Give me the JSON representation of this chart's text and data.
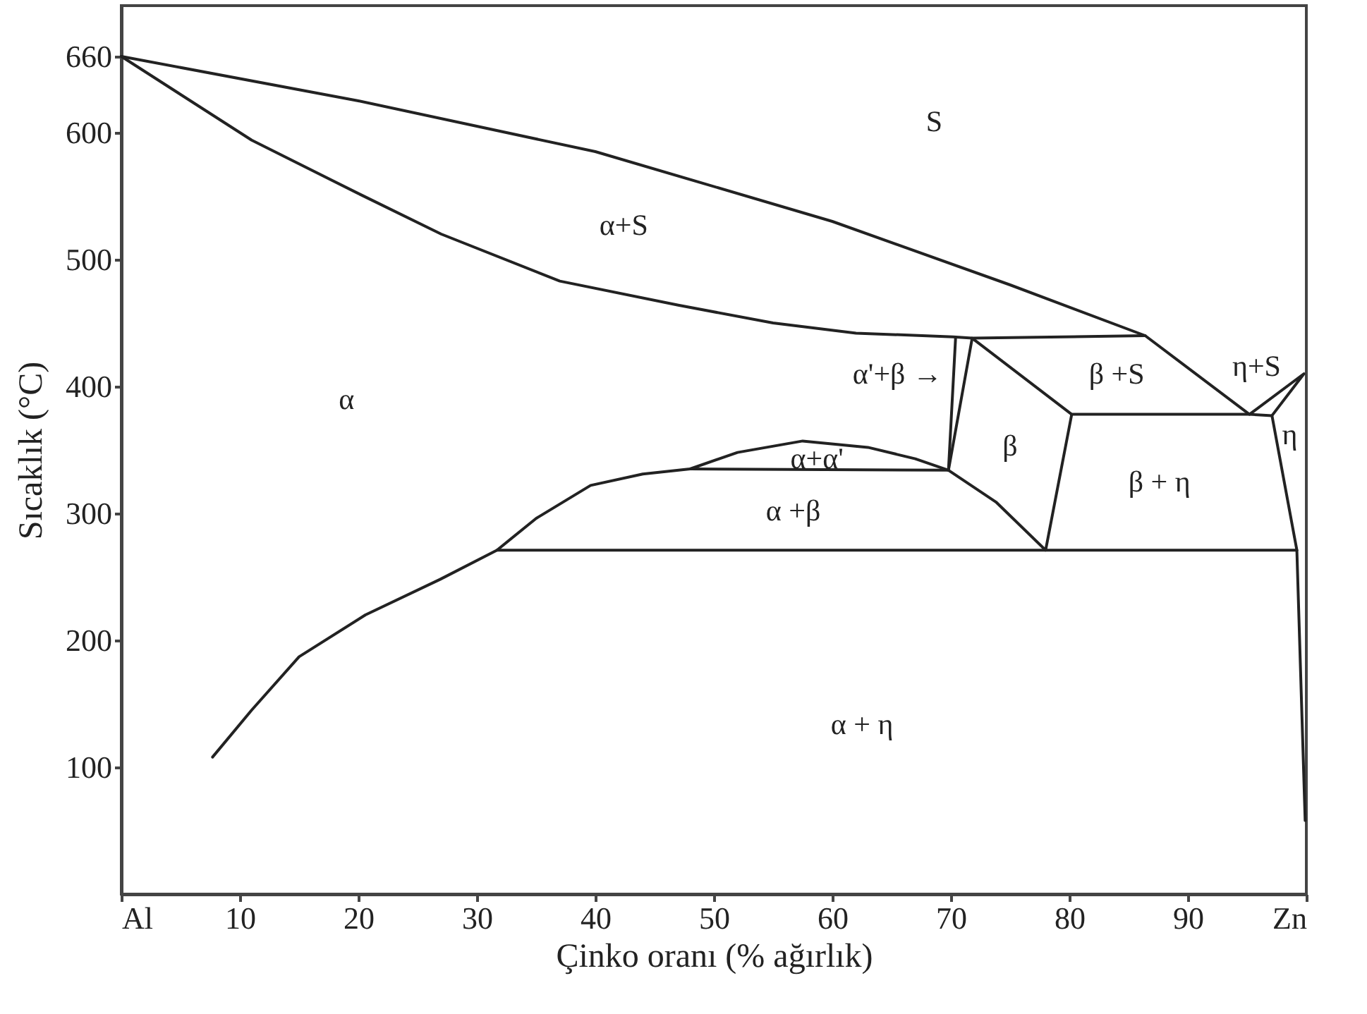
{
  "chart_data": {
    "type": "line",
    "xlabel": "Çinko oranı (% ağırlık)",
    "ylabel": "Sıcaklık (°C)",
    "xlim": [
      0,
      100
    ],
    "ylim": [
      0,
      700
    ],
    "xticks": [
      {
        "value": 0,
        "label": "Al"
      },
      10,
      20,
      30,
      40,
      50,
      60,
      70,
      80,
      90,
      {
        "value": 100,
        "label": "Zn"
      }
    ],
    "yticks": [
      100,
      200,
      300,
      400,
      500,
      600,
      660
    ],
    "grid": false,
    "marker": "none",
    "series": [
      {
        "color": "#222222",
        "x": [
          0,
          20,
          40,
          60,
          75,
          86.4,
          95.2,
          99.8,
          97.1,
          99.2,
          99.9
        ],
        "values": [
          660,
          625,
          585,
          530,
          480,
          440,
          378,
          410,
          377,
          271,
          58
        ]
      },
      {
        "color": "#222222",
        "x": [
          0,
          5,
          11,
          20,
          27,
          37,
          47,
          55,
          62,
          70.2,
          71.8,
          86.4
        ],
        "values": [
          660,
          630,
          594,
          552,
          520,
          483,
          464,
          450,
          442,
          439,
          438,
          440
        ]
      },
      {
        "color": "#222222",
        "x": [
          48,
          69.8,
          70.4
        ],
        "values": [
          335,
          334,
          438
        ]
      },
      {
        "color": "#222222",
        "x": [
          69.8,
          71.8,
          80.2,
          95.2,
          97.1
        ],
        "values": [
          334,
          438,
          378,
          378,
          377
        ]
      },
      {
        "color": "#222222",
        "x": [
          7.7,
          11,
          15,
          20.6,
          26.9,
          31.7,
          35,
          39.6,
          44,
          48,
          52,
          57.5,
          63,
          67,
          69.8,
          73.8,
          78,
          80.2
        ],
        "values": [
          108,
          145,
          187,
          220,
          248,
          271,
          296,
          322,
          331,
          335,
          348,
          357,
          352,
          343,
          334,
          309,
          271,
          378
        ]
      },
      {
        "color": "#222222",
        "x": [
          31.7,
          99.2
        ],
        "values": [
          271,
          271
        ]
      }
    ],
    "annotations": [
      "S",
      "α+S",
      "α",
      "α'+β →",
      "β +S",
      "η+S",
      "η",
      "β",
      "α+α'",
      "α +β",
      "β + η",
      "α + η"
    ]
  }
}
